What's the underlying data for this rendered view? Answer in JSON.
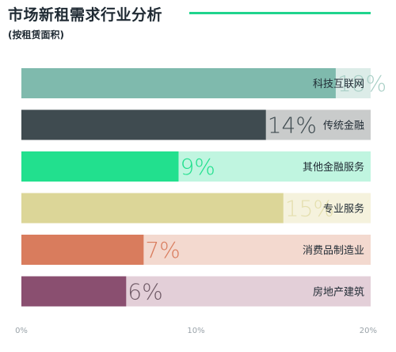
{
  "title": "市场新租需求行业分析",
  "subtitle": "(按租赁面积)",
  "chart_data": {
    "type": "bar",
    "orientation": "horizontal",
    "title": "市场新租需求行业分析",
    "subtitle": "(按租赁面积)",
    "categories": [
      "科技互联网",
      "传统金融",
      "其他金融服务",
      "专业服务",
      "消费品制造业",
      "房地产建筑"
    ],
    "values": [
      18,
      14,
      9,
      15,
      7,
      6
    ],
    "value_labels": [
      "18%",
      "14%",
      "9%",
      "15%",
      "7%",
      "6%"
    ],
    "xlim": [
      0,
      20
    ],
    "x_ticks": [
      "0%",
      "10%",
      "20%"
    ],
    "grid": false,
    "colors": {
      "bar": [
        "#7fbaad",
        "#3f4b50",
        "#22e08e",
        "#dcd698",
        "#d97c5d",
        "#8a4f70"
      ],
      "track": [
        "#dcece8",
        "#c9cbcb",
        "#c0f5e0",
        "#f5f2dd",
        "#f3d9cf",
        "#e3cfd8"
      ],
      "value_label": [
        "#a9cfc6",
        "#3f4b50",
        "#22e08e",
        "#e4dfae",
        "#d97c5d",
        "#6f5a66"
      ],
      "accent_line": "#1fd48d"
    }
  }
}
